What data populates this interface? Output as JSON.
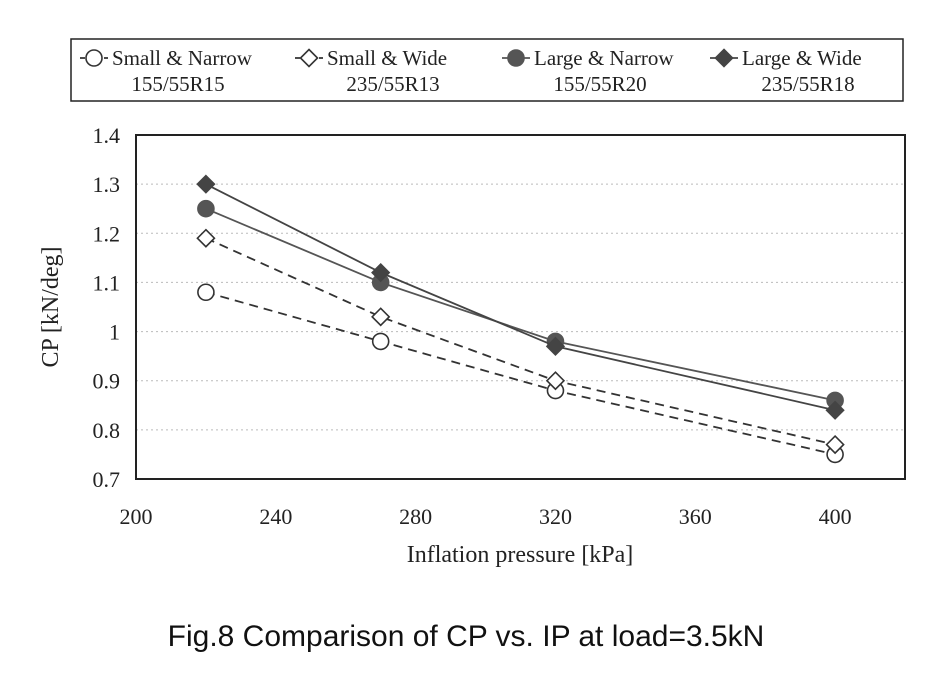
{
  "chart_data": {
    "type": "line",
    "caption": "Fig.8 Comparison of CP vs. IP at load=3.5kN",
    "xlabel": "Inflation pressure  [kPa]",
    "ylabel": "CP  [kN/deg]",
    "xlim": [
      200,
      420
    ],
    "ylim": [
      0.7,
      1.4
    ],
    "xticks": [
      200,
      240,
      280,
      320,
      360,
      400
    ],
    "yticks": [
      0.7,
      0.8,
      0.9,
      1,
      1.1,
      1.2,
      1.3,
      1.4
    ],
    "xtick_labels": [
      "200",
      "240",
      "280",
      "320",
      "360",
      "400"
    ],
    "ytick_labels": [
      "0.7",
      "0.8",
      "0.9",
      "1",
      "1.1",
      "1.2",
      "1.3",
      "1.4"
    ],
    "grid": "horizontal dotted",
    "legend_position": "top",
    "series": [
      {
        "name": "Small & Narrow",
        "size": "155/55R15",
        "marker": "circle-open",
        "line": "dashed",
        "color": "#333333",
        "x": [
          220,
          270,
          320,
          400
        ],
        "y": [
          1.08,
          0.98,
          0.88,
          0.75
        ]
      },
      {
        "name": "Small & Wide",
        "size": "235/55R13",
        "marker": "diamond-open",
        "line": "dashed",
        "color": "#333333",
        "x": [
          220,
          270,
          320,
          400
        ],
        "y": [
          1.19,
          1.03,
          0.9,
          0.77
        ]
      },
      {
        "name": "Large & Narrow",
        "size": "155/55R20",
        "marker": "circle-filled",
        "line": "solid",
        "color": "#555555",
        "x": [
          220,
          270,
          320,
          400
        ],
        "y": [
          1.25,
          1.1,
          0.98,
          0.86
        ]
      },
      {
        "name": "Large & Wide",
        "size": "235/55R18",
        "marker": "diamond-filled",
        "line": "solid",
        "color": "#444444",
        "x": [
          220,
          270,
          320,
          400
        ],
        "y": [
          1.3,
          1.12,
          0.97,
          0.84
        ]
      }
    ]
  }
}
